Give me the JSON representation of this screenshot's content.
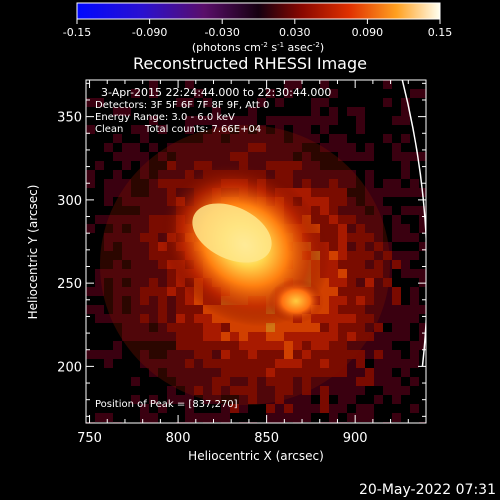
{
  "colorbar": {
    "ticks": [
      "-0.15",
      "-0.090",
      "-0.030",
      "0.030",
      "0.090",
      "0.15"
    ],
    "range": [
      -0.15,
      0.15
    ],
    "unit_main": "(photons cm",
    "unit_exp1": "-2",
    "unit_mid": " s",
    "unit_exp2": "-1",
    "unit_end": " asec",
    "unit_exp3": "-2",
    "unit_close": ")"
  },
  "chart_data": {
    "type": "heatmap",
    "title": "Reconstructed RHESSI Image",
    "xlabel": "Heliocentric X (arcsec)",
    "ylabel": "Heliocentric Y (arcsec)",
    "xlim": [
      748,
      940
    ],
    "ylim": [
      166,
      372
    ],
    "xticks": [
      750,
      800,
      850,
      900
    ],
    "yticks": [
      200,
      250,
      300,
      350
    ],
    "sources": [
      {
        "x": 837,
        "y": 270,
        "peak": 1.0
      },
      {
        "x": 866,
        "y": 233,
        "peak": 0.55
      }
    ],
    "peak_position": [
      837,
      270
    ],
    "limb": {
      "x": [
        930,
        938
      ],
      "y": [
        372,
        200
      ]
    },
    "colorscale": [
      "#000000",
      "#3a0010",
      "#7a0a00",
      "#c02000",
      "#ff5a00",
      "#ffaa20",
      "#fff08a",
      "#ffffff"
    ]
  },
  "annotations": {
    "time": "3-Apr-2015 22:24:44.000 to 22:30:44.000",
    "detectors": "Detectors: 3F 5F 6F 7F 8F 9F, Att 0",
    "energy": "Energy Range: 3.0 - 6.0 keV",
    "clean": "Clean",
    "counts": "Total counts: 7.66E+04",
    "peak": "Position of Peak = [837,270]"
  },
  "footer": {
    "timestamp": "20-May-2022 07:31"
  }
}
